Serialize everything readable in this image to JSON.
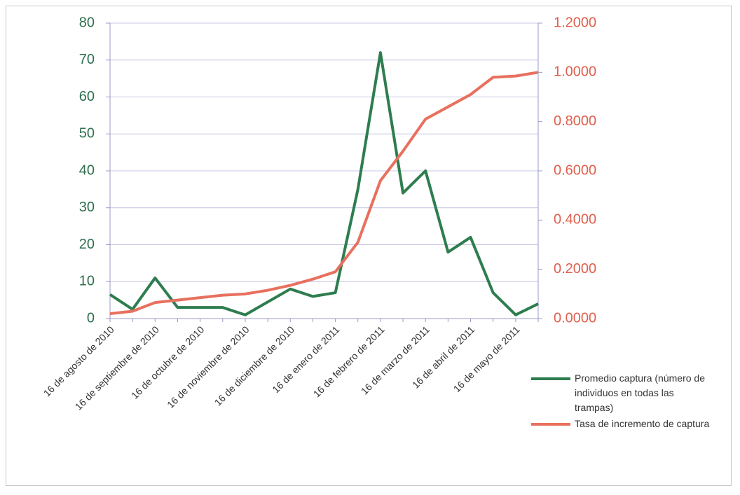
{
  "chart_data": {
    "type": "line",
    "categories": [
      "16 de agosto de 2010",
      null,
      "16 de septiembre de 2010",
      null,
      "16 de octubre de 2010",
      null,
      "16 de noviembre de 2010",
      null,
      "16 de diciembre de 2010",
      null,
      "16 de enero de 2011",
      null,
      "16 de febrero de 2011",
      null,
      "16 de marzo de 2011",
      null,
      "16 de abril de 2011",
      null,
      "16 de mayo de 2011",
      null
    ],
    "series": [
      {
        "name": "Promedio captura (número de individuos en todas las trampas)",
        "color": "#2e7d4f",
        "values": [
          6.5,
          2.5,
          11,
          3,
          3,
          3,
          1,
          4.5,
          8,
          6,
          7,
          35,
          72,
          34,
          40,
          18,
          22,
          7,
          1,
          4
        ]
      },
      {
        "name": "Tasa de incremento de captura",
        "color": "#e8705e",
        "axis": "y2",
        "values": [
          0.02,
          0.03,
          0.065,
          0.075,
          0.085,
          0.095,
          0.1,
          0.115,
          0.135,
          0.16,
          0.19,
          0.31,
          0.56,
          0.68,
          0.81,
          0.86,
          0.91,
          0.98,
          0.985,
          1.0
        ]
      }
    ],
    "ylim": [
      0,
      80
    ],
    "yticks": [
      0,
      10,
      20,
      30,
      40,
      50,
      60,
      70,
      80
    ],
    "y2lim": [
      0,
      1.2
    ],
    "y2ticks": [
      {
        "value": 0,
        "label": "0.0000"
      },
      {
        "value": 0.2,
        "label": "0.2000"
      },
      {
        "value": 0.4,
        "label": "0.4000"
      },
      {
        "value": 0.6,
        "label": "0.6000"
      },
      {
        "value": 0.8,
        "label": "0.8000"
      },
      {
        "value": 1.0,
        "label": "1.0000"
      },
      {
        "value": 1.2,
        "label": "1.2000"
      }
    ],
    "grid": true,
    "legend": "bottom-right"
  }
}
